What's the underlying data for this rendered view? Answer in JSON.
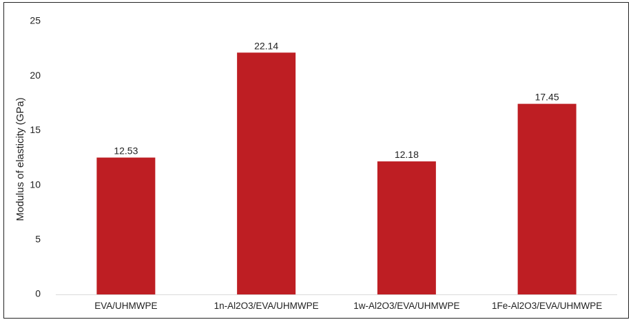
{
  "chart_data": {
    "type": "bar",
    "title": "",
    "xlabel": "",
    "ylabel": "Modulus of elasticity (GPa)",
    "categories": [
      "EVA/UHMWPE",
      "1n-Al2O3/EVA/UHMWPE",
      "1w-Al2O3/EVA/UHMWPE",
      "1Fe-Al2O3/EVA/UHMWPE"
    ],
    "values": [
      12.53,
      22.14,
      12.18,
      17.45
    ],
    "data_labels": [
      "12.53",
      "22.14",
      "12.18",
      "17.45"
    ],
    "ylim": [
      0,
      25
    ],
    "yticks": [
      "0",
      "5",
      "10",
      "15",
      "20",
      "25"
    ],
    "grid": false,
    "legend": "none",
    "bar_color": "#be1e23",
    "text_color": "#222222",
    "axis_color": "#d9d9d9"
  }
}
